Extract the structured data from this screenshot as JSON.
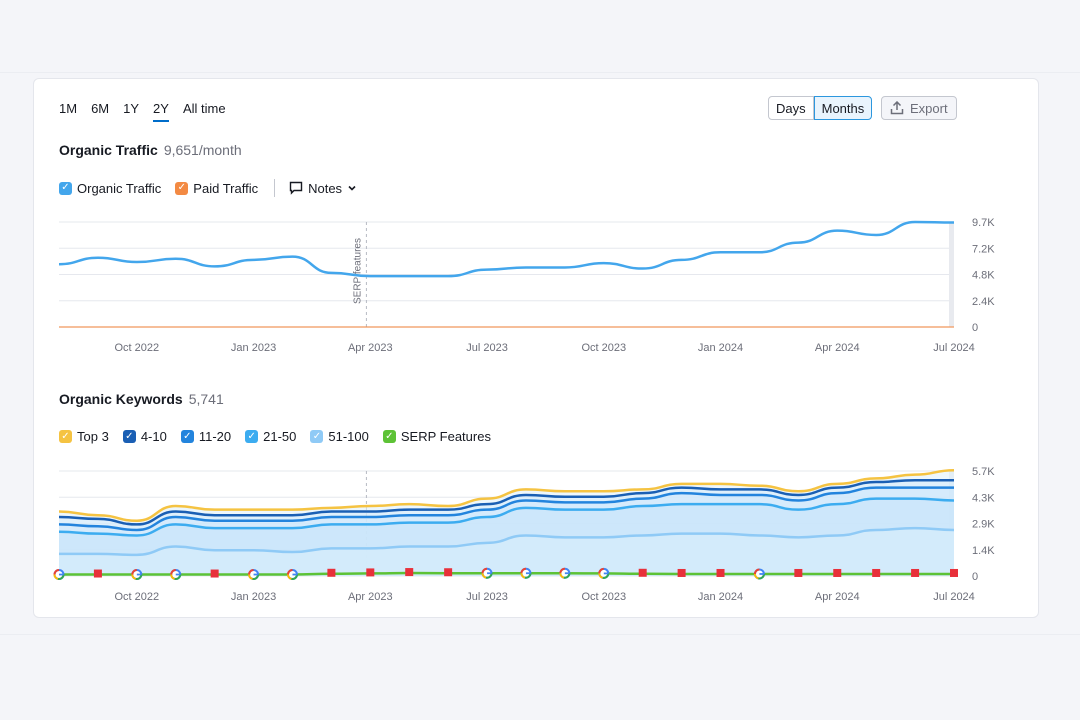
{
  "ranges": [
    "1M",
    "6M",
    "1Y",
    "2Y",
    "All time"
  ],
  "active_range": "2Y",
  "view_toggle": {
    "days": "Days",
    "months": "Months"
  },
  "export_label": "Export",
  "traffic": {
    "title": "Organic Traffic",
    "value": "9,651/month",
    "legend": {
      "organic": "Organic Traffic",
      "paid": "Paid Traffic",
      "notes": "Notes"
    },
    "annotation": "SERP features"
  },
  "keywords": {
    "title": "Organic Keywords",
    "value": "5,741",
    "legend": {
      "top3": "Top 3",
      "r4_10": "4-10",
      "r11_20": "11-20",
      "r21_50": "21-50",
      "r51_100": "51-100",
      "serp": "SERP Features"
    }
  },
  "colors": {
    "organic": "#43a6ec",
    "paid": "#f38a43",
    "top3": "#f5c342",
    "r4_10": "#1a5fb4",
    "r11_20": "#2384dd",
    "r21_50": "#3cacf0",
    "r51_100": "#8fcaf6",
    "serp": "#5dc236",
    "accent": "#006dca"
  },
  "chart_data": [
    {
      "type": "line",
      "x": [
        "Aug 2022",
        "Sep 2022",
        "Oct 2022",
        "Nov 2022",
        "Dec 2022",
        "Jan 2023",
        "Feb 2023",
        "Mar 2023",
        "Apr 2023",
        "May 2023",
        "Jun 2023",
        "Jul 2023",
        "Aug 2023",
        "Sep 2023",
        "Oct 2023",
        "Nov 2023",
        "Dec 2023",
        "Jan 2024",
        "Feb 2024",
        "Mar 2024",
        "Apr 2024",
        "May 2024",
        "Jun 2024",
        "Jul 2024"
      ],
      "x_tick_labels": [
        "Oct 2022",
        "Jan 2023",
        "Apr 2023",
        "Jul 2023",
        "Oct 2023",
        "Jan 2024",
        "Apr 2024",
        "Jul 2024"
      ],
      "y_tick_labels": [
        "9.7K",
        "7.2K",
        "4.8K",
        "2.4K",
        "0"
      ],
      "ylim": [
        0,
        9700
      ],
      "series": [
        {
          "name": "Organic Traffic",
          "values": [
            5800,
            6400,
            6000,
            6300,
            5600,
            6200,
            6500,
            5000,
            4700,
            4700,
            4700,
            5300,
            5500,
            5500,
            5900,
            5400,
            6200,
            6900,
            6900,
            7800,
            8900,
            8500,
            9700,
            9651
          ]
        },
        {
          "name": "Paid Traffic",
          "values": [
            0,
            0,
            0,
            0,
            0,
            0,
            0,
            0,
            0,
            0,
            0,
            0,
            0,
            0,
            0,
            0,
            0,
            0,
            0,
            0,
            0,
            0,
            0,
            0
          ]
        }
      ]
    },
    {
      "type": "area",
      "x": [
        "Aug 2022",
        "Sep 2022",
        "Oct 2022",
        "Nov 2022",
        "Dec 2022",
        "Jan 2023",
        "Feb 2023",
        "Mar 2023",
        "Apr 2023",
        "May 2023",
        "Jun 2023",
        "Jul 2023",
        "Aug 2023",
        "Sep 2023",
        "Oct 2023",
        "Nov 2023",
        "Dec 2023",
        "Jan 2024",
        "Feb 2024",
        "Mar 2024",
        "Apr 2024",
        "May 2024",
        "Jun 2024",
        "Jul 2024"
      ],
      "x_tick_labels": [
        "Oct 2022",
        "Jan 2023",
        "Apr 2023",
        "Jul 2023",
        "Oct 2023",
        "Jan 2024",
        "Apr 2024",
        "Jul 2024"
      ],
      "y_tick_labels": [
        "5.7K",
        "4.3K",
        "2.9K",
        "1.4K",
        "0"
      ],
      "ylim": [
        0,
        5700
      ],
      "series": [
        {
          "name": "Top 3",
          "values": [
            3500,
            3300,
            3000,
            3800,
            3600,
            3600,
            3600,
            3700,
            3800,
            3900,
            3800,
            4200,
            4700,
            4600,
            4600,
            4700,
            5000,
            5000,
            4900,
            4600,
            5000,
            5300,
            5500,
            5741
          ]
        },
        {
          "name": "4-10",
          "values": [
            3200,
            3100,
            2800,
            3500,
            3300,
            3300,
            3300,
            3500,
            3500,
            3600,
            3600,
            3900,
            4400,
            4300,
            4300,
            4500,
            4800,
            4700,
            4700,
            4400,
            4800,
            5100,
            5200,
            5200
          ]
        },
        {
          "name": "11-20",
          "values": [
            2800,
            2700,
            2500,
            3200,
            3000,
            3000,
            3000,
            3200,
            3200,
            3300,
            3300,
            3600,
            4100,
            4000,
            4000,
            4200,
            4500,
            4400,
            4400,
            4100,
            4500,
            4800,
            4800,
            4800
          ]
        },
        {
          "name": "21-50",
          "values": [
            2400,
            2300,
            2200,
            2800,
            2600,
            2600,
            2600,
            2800,
            2800,
            2900,
            2900,
            3200,
            3700,
            3600,
            3600,
            3800,
            3900,
            3900,
            3900,
            3600,
            3900,
            4200,
            4200,
            4100
          ]
        },
        {
          "name": "51-100",
          "values": [
            1200,
            1200,
            1150,
            1600,
            1400,
            1400,
            1300,
            1500,
            1500,
            1600,
            1600,
            1800,
            2200,
            2100,
            2100,
            2200,
            2300,
            2300,
            2200,
            2100,
            2200,
            2500,
            2600,
            2500
          ]
        },
        {
          "name": "SERP Features",
          "values": [
            80,
            80,
            80,
            80,
            80,
            80,
            80,
            120,
            140,
            160,
            150,
            150,
            150,
            150,
            140,
            120,
            110,
            110,
            110,
            110,
            110,
            110,
            110,
            110
          ]
        }
      ],
      "markers": [
        "google",
        "flag",
        "google",
        "google",
        "flag",
        "google",
        "google",
        "flag",
        "flag",
        "flag",
        "flag",
        "google",
        "google",
        "google",
        "google",
        "flag",
        "flag",
        "flag",
        "google",
        "flag",
        "flag",
        "flag",
        "flag",
        "flag"
      ]
    }
  ]
}
